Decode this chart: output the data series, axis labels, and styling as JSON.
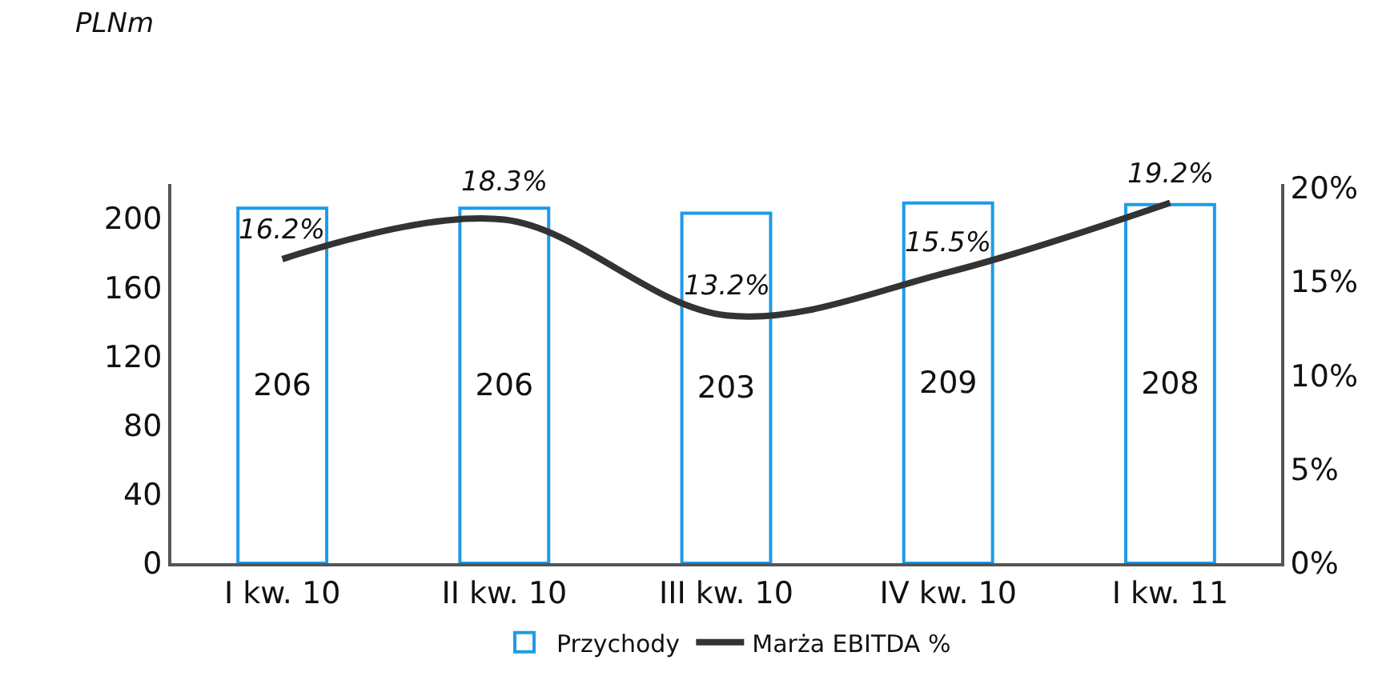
{
  "chart_data": {
    "type": "bar",
    "ylabel": "PLNm",
    "categories": [
      "I kw. 10",
      "II kw. 10",
      "III kw. 10",
      "IV kw. 10",
      "I kw. 11"
    ],
    "series": [
      {
        "name": "Przychody",
        "color": "#1e9be8",
        "values": [
          206,
          206,
          203,
          209,
          208
        ],
        "value_labels": [
          "206",
          "206",
          "203",
          "209",
          "208"
        ]
      },
      {
        "name": "Marża EBITDA %",
        "type": "line",
        "axis": "y2",
        "color": "#333333",
        "values": [
          16.2,
          18.3,
          13.2,
          15.5,
          19.2
        ],
        "value_labels": [
          "16.2%",
          "18.3%",
          "13.2%",
          "15.5%",
          "19.2%"
        ],
        "marker": "none"
      }
    ],
    "ylim": [
      0,
      220
    ],
    "yticks": [
      0,
      40,
      80,
      120,
      160,
      200
    ],
    "y2lim": [
      0,
      20.2
    ],
    "y2ticks": [
      {
        "value": 0,
        "label": "0%"
      },
      {
        "value": 5,
        "label": "5%"
      },
      {
        "value": 10,
        "label": "10%"
      },
      {
        "value": 15,
        "label": "15%"
      },
      {
        "value": 20,
        "label": "20%"
      }
    ],
    "grid": false,
    "legend": "bottom"
  }
}
